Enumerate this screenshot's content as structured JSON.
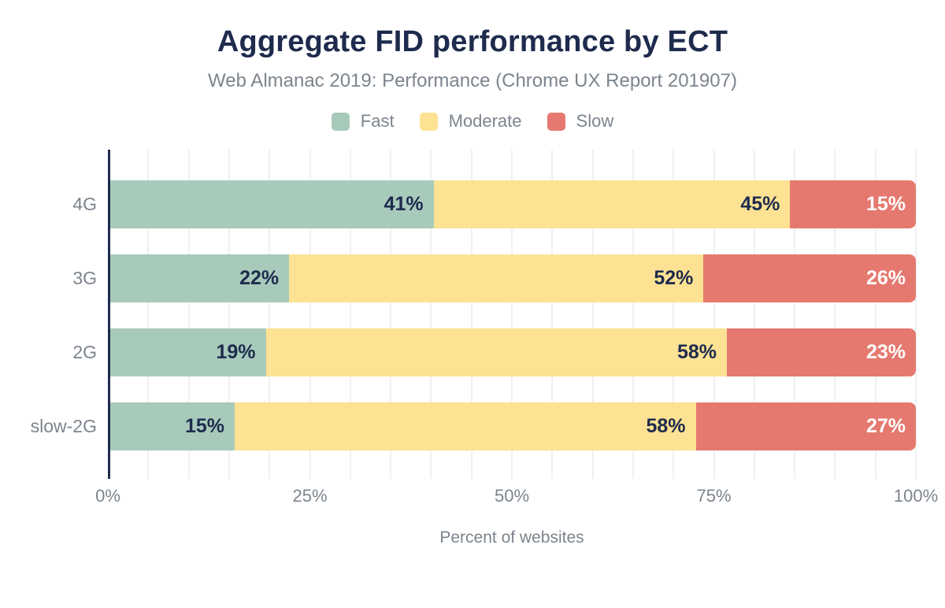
{
  "chart_data": {
    "type": "bar",
    "orientation": "horizontal",
    "stacked": true,
    "title": "Aggregate FID performance by ECT",
    "subtitle": "Web Almanac 2019: Performance (Chrome UX Report 201907)",
    "xlabel": "Percent of websites",
    "categories": [
      "4G",
      "3G",
      "2G",
      "slow-2G"
    ],
    "series": [
      {
        "name": "Fast",
        "color": "#a8cabb",
        "label_color": "#1e2b4d",
        "values": [
          41,
          22,
          19,
          15
        ]
      },
      {
        "name": "Moderate",
        "color": "#fde293",
        "label_color": "#1e2b4d",
        "values": [
          45,
          52,
          58,
          58
        ]
      },
      {
        "name": "Slow",
        "color": "#e5796f",
        "label_color": "#ffffff",
        "values": [
          15,
          26,
          23,
          27
        ]
      }
    ],
    "value_suffix": "%",
    "xlim": [
      0,
      100
    ],
    "x_ticks": [
      {
        "label": "0%",
        "position": 0
      },
      {
        "label": "25%",
        "position": 25
      },
      {
        "label": "50%",
        "position": 50
      },
      {
        "label": "75%",
        "position": 75
      },
      {
        "label": "100%",
        "position": 100
      }
    ],
    "grid": {
      "step": 5,
      "color": "#f0f0f0",
      "vertical": true
    },
    "legend_position": "top"
  },
  "colors": {
    "title_text": "#1e2b4d",
    "muted_text": "#7c848d",
    "axis_line": "#1e2b4d",
    "background": "#ffffff",
    "fast": "#a8cabb",
    "moderate": "#fde293",
    "slow": "#e5796f"
  }
}
